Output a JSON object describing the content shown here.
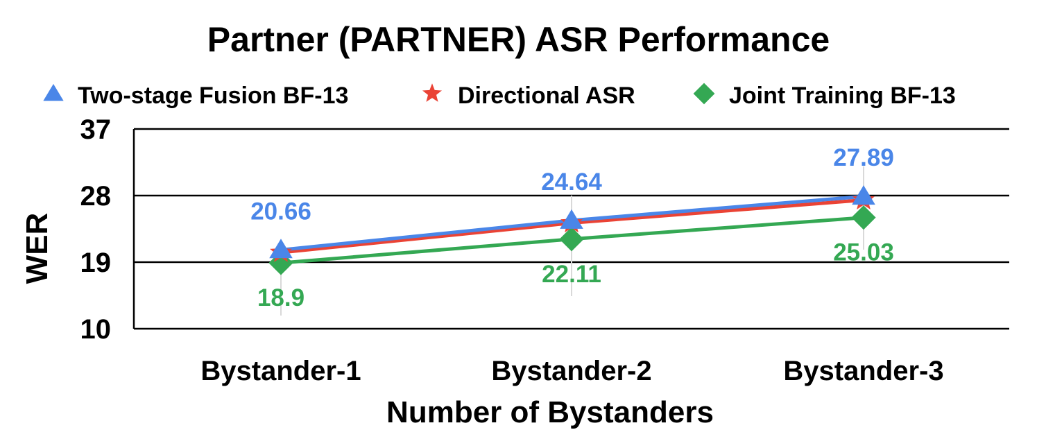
{
  "chart_data": {
    "type": "line",
    "title": "Partner (PARTNER) ASR Performance",
    "xlabel": "Number of Bystanders",
    "ylabel": "WER",
    "categories": [
      "Bystander-1",
      "Bystander-2",
      "Bystander-3"
    ],
    "ylim": [
      10,
      37
    ],
    "yticks": [
      10,
      19,
      28,
      37
    ],
    "grid": true,
    "legend_position": "top",
    "series": [
      {
        "name": "Two-stage Fusion BF-13",
        "values": [
          20.66,
          24.64,
          27.89
        ],
        "color": "#4a86e8",
        "marker": "triangle",
        "labels": [
          "20.66",
          "24.64",
          "27.89"
        ],
        "label_side": "above"
      },
      {
        "name": "Directional ASR",
        "values": [
          20.3,
          24.3,
          27.4
        ],
        "color": "#ea4335",
        "marker": "star",
        "labels": [],
        "label_side": "none"
      },
      {
        "name": "Joint Training BF-13",
        "values": [
          18.9,
          22.11,
          25.03
        ],
        "color": "#34a853",
        "marker": "diamond",
        "labels": [
          "18.9",
          "22.11",
          "25.03"
        ],
        "label_side": "below"
      }
    ]
  }
}
